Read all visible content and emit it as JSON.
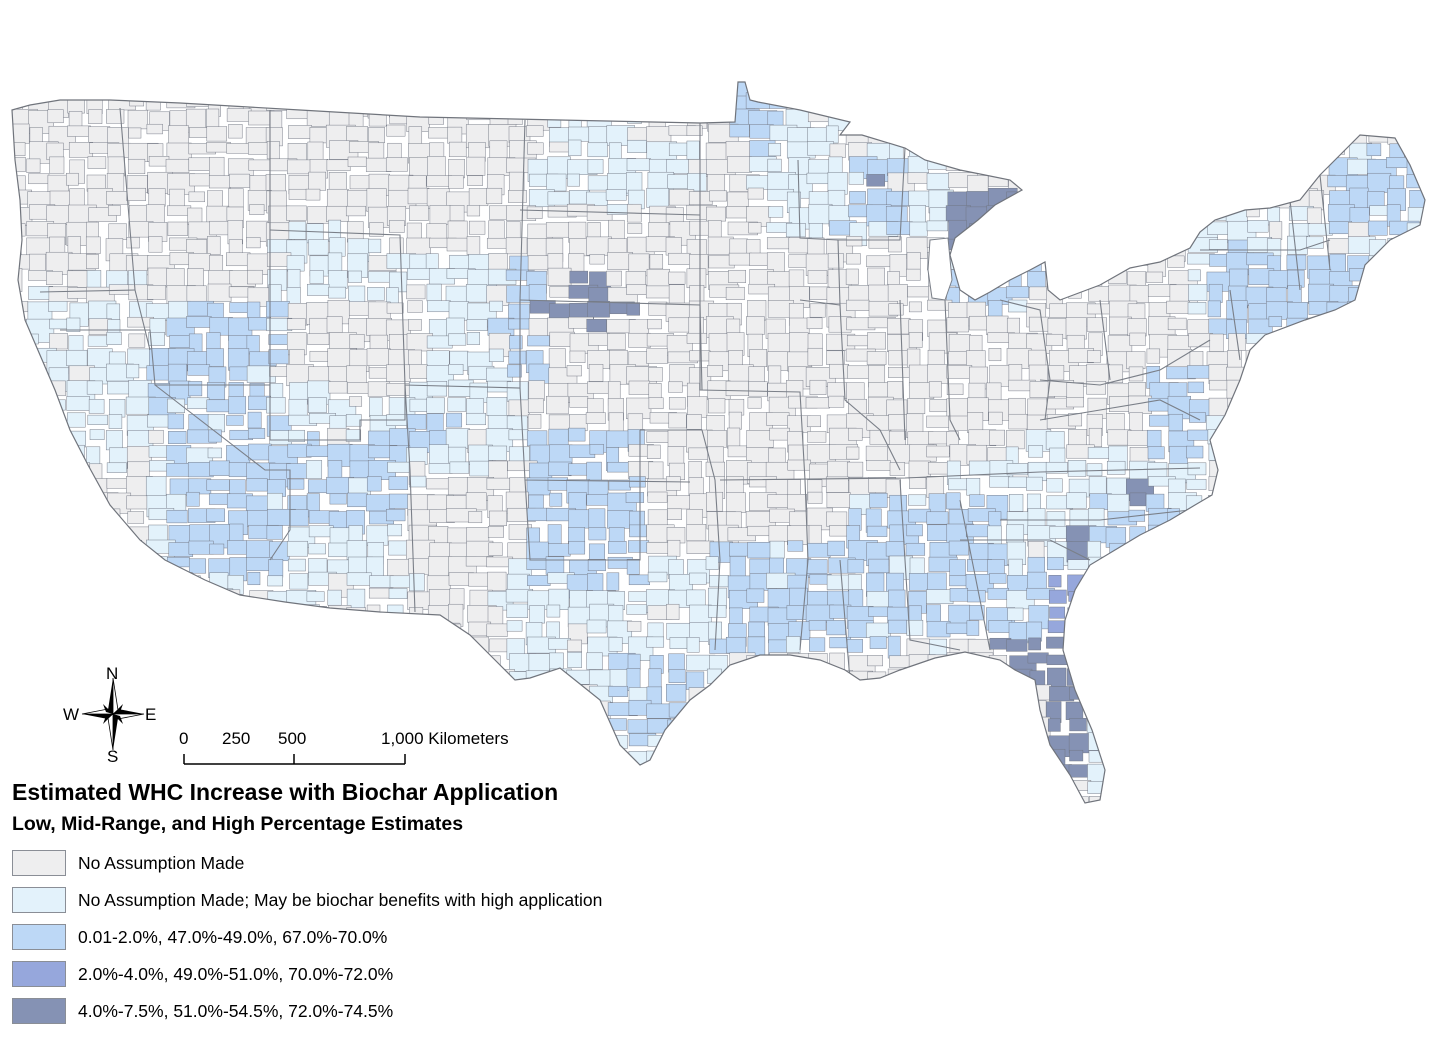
{
  "legend": {
    "title": "Estimated WHC Increase with Biochar Application",
    "subtitle": "Low, Mid-Range, and High Percentage Estimates",
    "items": [
      {
        "label": "No Assumption Made",
        "color": "#eeeeef"
      },
      {
        "label": "No Assumption Made; May be biochar benefits with high application",
        "color": "#e3f2fb"
      },
      {
        "label": "0.01-2.0%, 47.0%-49.0%, 67.0%-70.0%",
        "color": "#bdd8f6"
      },
      {
        "label": "2.0%-4.0%, 49.0%-51.0%, 70.0%-72.0%",
        "color": "#96a7dc"
      },
      {
        "label": "4.0%-7.5%, 51.0%-54.5%, 72.0%-74.5%",
        "color": "#8592b4"
      }
    ]
  },
  "compass": {
    "north": "N",
    "south": "S",
    "east": "E",
    "west": "W"
  },
  "scale_bar": {
    "ticks": [
      "0",
      "250",
      "500",
      "1,000 Kilometers"
    ]
  },
  "icons": {
    "compass": "compass-rose-icon"
  }
}
